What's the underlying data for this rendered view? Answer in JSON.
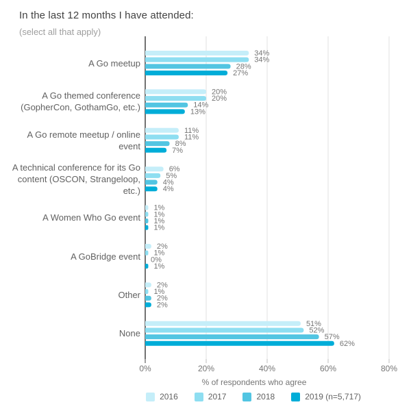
{
  "chart_data": {
    "type": "bar",
    "orientation": "horizontal",
    "title": "In the last 12 months I have attended:",
    "subtitle": "(select all that apply)",
    "xlabel": "% of respondents who agree",
    "xlim": [
      0,
      80
    ],
    "grid": true,
    "legend_position": "bottom",
    "value_suffix": "%",
    "x_ticks": [
      {
        "value": 0,
        "label": "0%"
      },
      {
        "value": 20,
        "label": "20%"
      },
      {
        "value": 40,
        "label": "40%"
      },
      {
        "value": 60,
        "label": "60%"
      },
      {
        "value": 80,
        "label": "80%"
      }
    ],
    "categories": [
      [
        "A Go meetup"
      ],
      [
        "A Go themed conference",
        "(GopherCon, GothamGo, etc.)"
      ],
      [
        "A Go remote meetup / online",
        "event"
      ],
      [
        "A technical conference for its Go",
        "content (OSCON, Strangeloop,",
        "etc.)"
      ],
      [
        "A Women Who Go event"
      ],
      [
        "A GoBridge event"
      ],
      [
        "Other"
      ],
      [
        "None"
      ]
    ],
    "series": [
      {
        "name": "2016",
        "color": "#c5eef9",
        "values": [
          34,
          20,
          11,
          6,
          1,
          2,
          2,
          51
        ]
      },
      {
        "name": "2017",
        "color": "#8edef1",
        "values": [
          34,
          20,
          11,
          5,
          1,
          1,
          1,
          52
        ]
      },
      {
        "name": "2018",
        "color": "#52c5e2",
        "values": [
          28,
          14,
          8,
          4,
          1,
          0,
          2,
          57
        ]
      },
      {
        "name": "2019 (n=5,717)",
        "color": "#00add8",
        "values": [
          27,
          13,
          7,
          4,
          1,
          1,
          2,
          62
        ]
      }
    ]
  },
  "colors": {
    "title_text": "#424242",
    "subtitle_text": "#9e9e9e",
    "category_text": "#616161",
    "tick_text": "#757575",
    "value_text": "#757575",
    "gridline": "#e0e0e0",
    "axis_line": "#424242",
    "background": "#ffffff"
  }
}
